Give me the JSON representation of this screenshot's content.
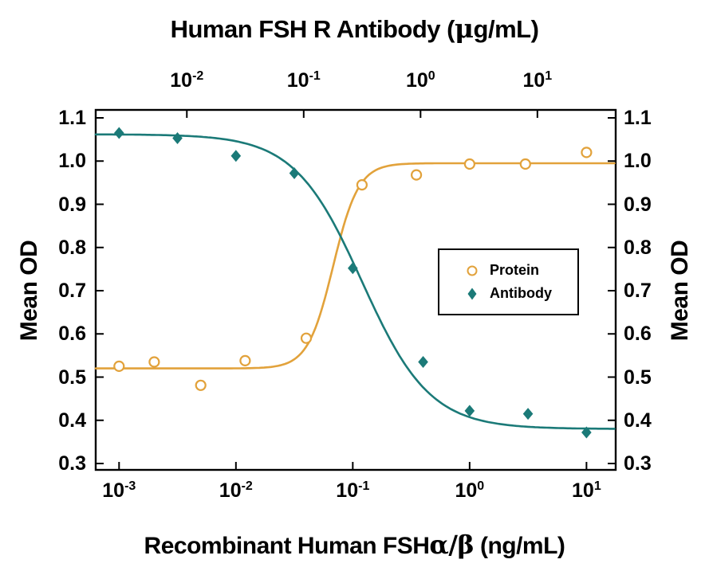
{
  "chart_data": {
    "type": "scatter",
    "title_top": {
      "pre": "Human FSH R Antibody (",
      "greek": "μ",
      "post": "g/mL)",
      "full": "Human FSH R Antibody (μg/mL)"
    },
    "xlabel_bottom": {
      "pre": "Recombinant Human FSH",
      "greek": "α/β",
      "post": " (ng/mL)",
      "full": "Recombinant Human FSHα/β (ng/mL)"
    },
    "ylabel_left": "Mean OD",
    "ylabel_right": "Mean OD",
    "grid": false,
    "background_color": "#FFFFFF",
    "axis_color": "#000000",
    "y_axis": {
      "min": 0.3,
      "max": 1.1,
      "tick_values": [
        0.3,
        0.4,
        0.5,
        0.6,
        0.7,
        0.8,
        0.9,
        1.0,
        1.1
      ],
      "tick_labels": [
        "0.3",
        "0.4",
        "0.5",
        "0.6",
        "0.7",
        "0.8",
        "0.9",
        "1.0",
        "1.1"
      ]
    },
    "x_axis_bottom": {
      "scale": "log10",
      "unit": "ng/mL",
      "tick_exponents": [
        -3,
        -2,
        -1,
        0,
        1
      ],
      "range_exponents": [
        -3.2,
        1.25
      ]
    },
    "x_axis_top": {
      "scale": "log10",
      "unit": "μg/mL",
      "tick_exponents": [
        -2,
        -1,
        0,
        1
      ],
      "offset_decades_vs_bottom": 0.42
    },
    "series": [
      {
        "name": "Protein",
        "marker": "open-circle",
        "color": "#E2A23B",
        "x": [
          0.001,
          0.002,
          0.005,
          0.012,
          0.04,
          0.12,
          0.35,
          1,
          3,
          10
        ],
        "y": [
          0.525,
          0.535,
          0.481,
          0.538,
          0.59,
          0.945,
          0.968,
          0.993,
          0.993,
          1.02
        ],
        "fit_curve_4pl": {
          "bottom": 0.52,
          "top": 0.995,
          "ec50": 0.068,
          "hill": 4.0
        }
      },
      {
        "name": "Antibody",
        "marker": "filled-diamond",
        "color": "#1B7A78",
        "x": [
          0.001,
          0.00316,
          0.01,
          0.0316,
          0.1,
          0.4,
          1,
          3.16,
          10
        ],
        "x_top_axis_ugml": [
          0.0027,
          0.0083,
          0.027,
          0.083,
          0.27,
          1.05,
          2.7,
          8.3,
          26
        ],
        "y": [
          1.065,
          1.053,
          1.012,
          0.972,
          0.752,
          0.535,
          0.422,
          0.415,
          0.372
        ],
        "fit_curve_4pl": {
          "top": 1.062,
          "bottom": 0.38,
          "ic50": 0.12,
          "hill": 1.5
        }
      }
    ],
    "legend": {
      "position": "middle-right",
      "items": [
        {
          "label": "Protein",
          "marker": "open-circle"
        },
        {
          "label": "Antibody",
          "marker": "filled-diamond"
        }
      ]
    }
  }
}
